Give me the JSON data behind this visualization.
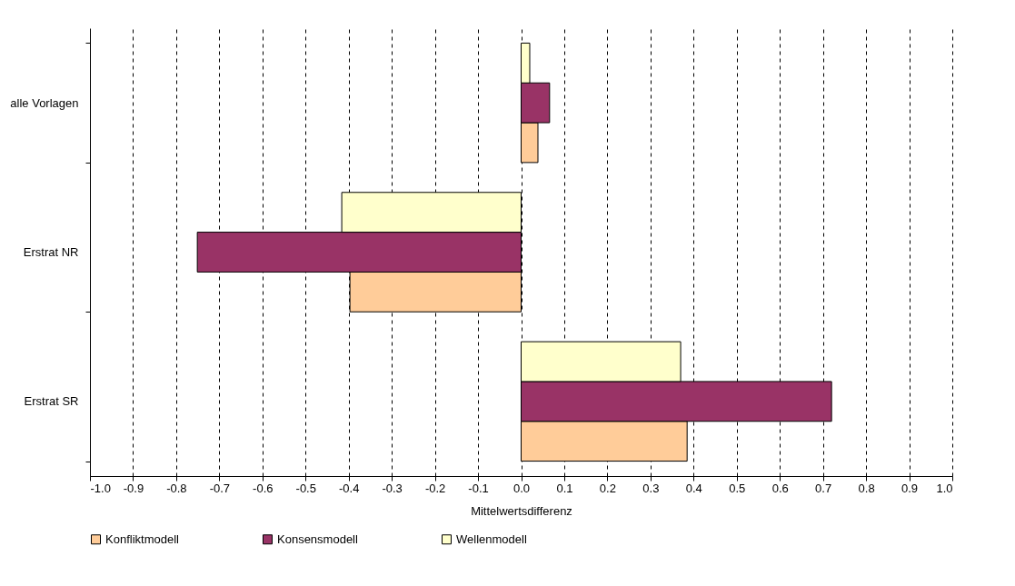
{
  "chart_data": {
    "type": "bar",
    "orientation": "horizontal",
    "xlabel": "Mittelwertsdifferenz",
    "categories": [
      "alle Vorlagen",
      "Erstrat NR",
      "Erstrat SR"
    ],
    "series": [
      {
        "name": "Konfliktmodell",
        "color": "#ffcc99",
        "values": [
          0.039,
          -0.397,
          0.385
        ]
      },
      {
        "name": "Konsensmodell",
        "color": "#993366",
        "values": [
          0.066,
          -0.751,
          0.72
        ]
      },
      {
        "name": "Wellenmodell",
        "color": "#ffffcc",
        "values": [
          0.02,
          -0.416,
          0.37
        ]
      }
    ],
    "xlim": [
      -1.0,
      1.0
    ],
    "xticks": [
      {
        "value": -1.0,
        "label": "-1.0"
      },
      -0.9,
      -0.8,
      -0.7,
      -0.6,
      -0.5,
      -0.4,
      -0.3,
      -0.2,
      -0.1,
      {
        "value": 0,
        "label": "0.0"
      },
      0.1,
      0.2,
      0.3,
      0.4,
      0.5,
      0.6,
      0.7,
      0.8,
      0.9,
      {
        "value": 1.0,
        "label": "1.0"
      }
    ],
    "grid": "x",
    "legend": "bottom"
  }
}
